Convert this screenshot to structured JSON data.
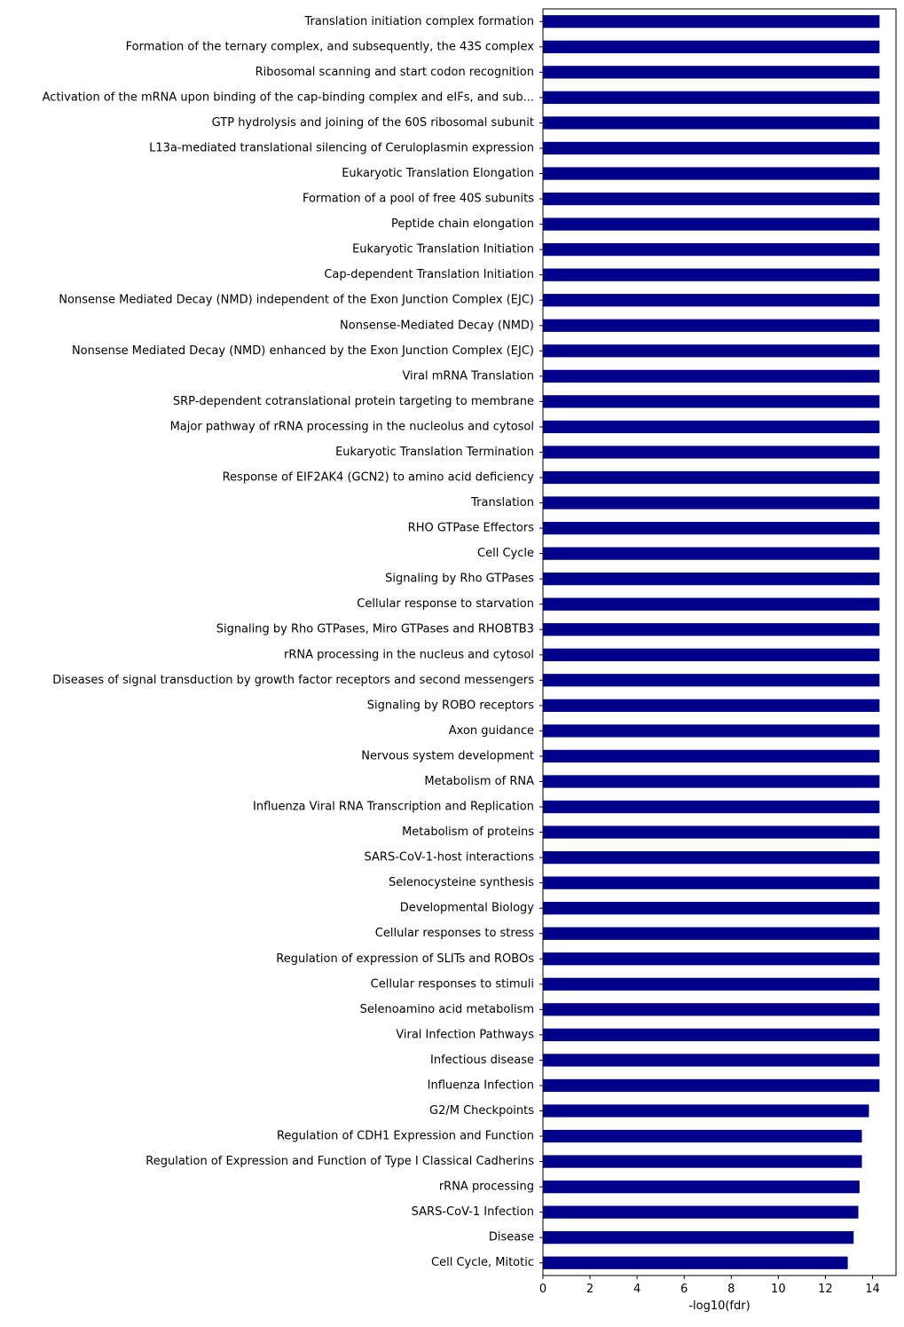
{
  "chart_data": {
    "type": "bar",
    "orientation": "horizontal",
    "bar_color": "#00008b",
    "xlabel": "-log10(fdr)",
    "ylabel": "",
    "title": "",
    "xlim": [
      0,
      15
    ],
    "xticks": [
      0,
      2,
      4,
      6,
      8,
      10,
      12,
      14
    ],
    "grid": false,
    "categories": [
      "Translation initiation complex formation",
      "Formation of the ternary complex, and subsequently, the 43S complex",
      "Ribosomal scanning and start codon recognition",
      "Activation of the mRNA upon binding of the cap-binding complex and eIFs, and sub...",
      "GTP hydrolysis and joining of the 60S ribosomal subunit",
      "L13a-mediated translational silencing of Ceruloplasmin expression",
      "Eukaryotic Translation Elongation",
      "Formation of a pool of free 40S subunits",
      "Peptide chain elongation",
      "Eukaryotic Translation Initiation",
      "Cap-dependent Translation Initiation",
      "Nonsense Mediated Decay (NMD) independent of the Exon Junction Complex (EJC)",
      "Nonsense-Mediated Decay (NMD)",
      "Nonsense Mediated Decay (NMD) enhanced by the Exon Junction Complex (EJC)",
      "Viral mRNA Translation",
      "SRP-dependent cotranslational protein targeting to membrane",
      "Major pathway of rRNA processing in the nucleolus and cytosol",
      "Eukaryotic Translation Termination",
      "Response of EIF2AK4 (GCN2) to amino acid deficiency",
      "Translation",
      "RHO GTPase Effectors",
      "Cell Cycle",
      "Signaling by Rho GTPases",
      "Cellular response to starvation",
      "Signaling by Rho GTPases, Miro GTPases and RHOBTB3",
      "rRNA processing in the nucleus and cytosol",
      "Diseases of signal transduction by growth factor receptors and second messengers",
      "Signaling by ROBO receptors",
      "Axon guidance",
      "Nervous system development",
      "Metabolism of RNA",
      "Influenza Viral RNA Transcription and Replication",
      "Metabolism of proteins",
      "SARS-CoV-1-host interactions",
      "Selenocysteine synthesis",
      "Developmental Biology",
      "Cellular responses to stress",
      "Regulation of expression of SLITs and ROBOs",
      "Cellular responses to stimuli",
      "Selenoamino acid metabolism",
      "Viral Infection Pathways",
      "Infectious disease",
      "Influenza Infection",
      "G2/M Checkpoints",
      "Regulation of CDH1 Expression and Function",
      "Regulation of Expression and Function of Type I Classical Cadherins",
      "rRNA processing",
      "SARS-CoV-1 Infection",
      "Disease",
      "Cell Cycle, Mitotic"
    ],
    "values": [
      14.3,
      14.3,
      14.3,
      14.3,
      14.3,
      14.3,
      14.3,
      14.3,
      14.3,
      14.3,
      14.3,
      14.3,
      14.3,
      14.3,
      14.3,
      14.3,
      14.3,
      14.3,
      14.3,
      14.3,
      14.3,
      14.3,
      14.3,
      14.3,
      14.3,
      14.3,
      14.3,
      14.3,
      14.3,
      14.3,
      14.3,
      14.3,
      14.3,
      14.3,
      14.3,
      14.3,
      14.3,
      14.3,
      14.3,
      14.3,
      14.3,
      14.3,
      14.3,
      13.85,
      13.55,
      13.55,
      13.45,
      13.4,
      13.2,
      12.95
    ]
  }
}
